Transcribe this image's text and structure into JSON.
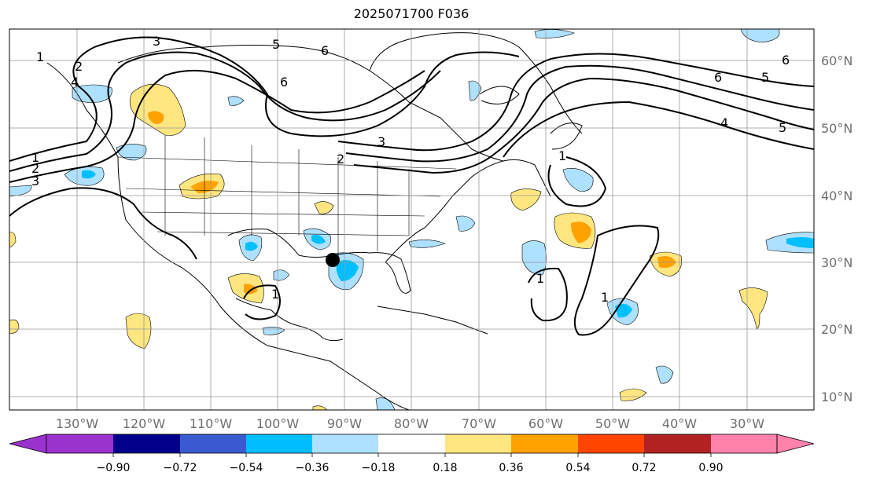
{
  "title": "2025071700 F036",
  "map": {
    "latitude_labels": [
      "60°N",
      "50°N",
      "40°N",
      "30°N",
      "20°N",
      "10°N"
    ],
    "longitude_labels": [
      "130°W",
      "120°W",
      "110°W",
      "100°W",
      "90°W",
      "80°W",
      "70°W",
      "60°W",
      "50°W",
      "40°W",
      "30°W"
    ],
    "contour_labels": [
      "1",
      "2",
      "3",
      "1",
      "2",
      "3",
      "4",
      "5",
      "6",
      "6",
      "5",
      "6",
      "6",
      "4",
      "5",
      "1",
      "1",
      "1",
      "1",
      "2",
      "3"
    ]
  },
  "colorbar": {
    "labels": [
      "−0.90",
      "−0.72",
      "−0.54",
      "−0.36",
      "−0.18",
      "0.18",
      "0.36",
      "0.54",
      "0.72",
      "0.90"
    ],
    "colors": [
      "#9a32cd",
      "#00008b",
      "#3a5bd0",
      "#00bfff",
      "#aee0ff",
      "#ffffff",
      "#ffe680",
      "#ffa200",
      "#ff4500",
      "#b22222",
      "#ff82ab"
    ]
  },
  "colors": {
    "fill_light_blue": "#aee0ff",
    "fill_blue": "#00bfff",
    "fill_yellow": "#ffe680",
    "fill_orange": "#ffa200",
    "grid": "#999999",
    "contour": "#000000"
  }
}
